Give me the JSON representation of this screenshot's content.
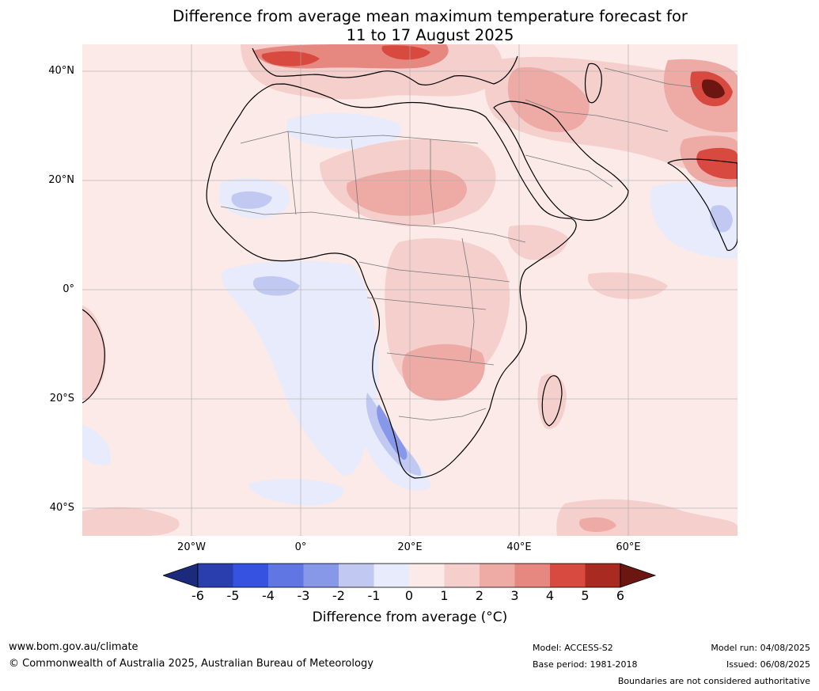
{
  "title": {
    "line1": "Difference from average mean maximum temperature forecast for",
    "line2": "11 to 17 August 2025"
  },
  "lat_labels": [
    "40°N",
    "20°N",
    "0°",
    "20°S",
    "40°S"
  ],
  "lon_labels": [
    "20°W",
    "0°",
    "20°E",
    "40°E",
    "60°E"
  ],
  "colorbar": {
    "label": "Difference from average (°C)",
    "ticks": [
      "-6",
      "-5",
      "-4",
      "-3",
      "-2",
      "-1",
      "0",
      "1",
      "2",
      "3",
      "4",
      "5",
      "6"
    ],
    "colors": {
      "below_min": "#1b2a7a",
      "bins": [
        "#2a3eae",
        "#3552e0",
        "#5f76e3",
        "#8898e8",
        "#c1c8f2",
        "#e8ebfb",
        "#fbeae8",
        "#f5cfcc",
        "#eeaaa5",
        "#e68780",
        "#d84a40",
        "#a92a21"
      ],
      "above_max": "#6b1610"
    }
  },
  "footer": {
    "website": "www.bom.gov.au/climate",
    "copyright": "© Commonwealth of Australia 2025, Australian Bureau of Meteorology",
    "model": "Model: ACCESS-S2",
    "base_period": "Base period: 1981-2018",
    "model_run": "Model run: 04/08/2025",
    "issued": "Issued: 06/08/2025",
    "disclaimer": "Boundaries are not considered authoritative"
  }
}
